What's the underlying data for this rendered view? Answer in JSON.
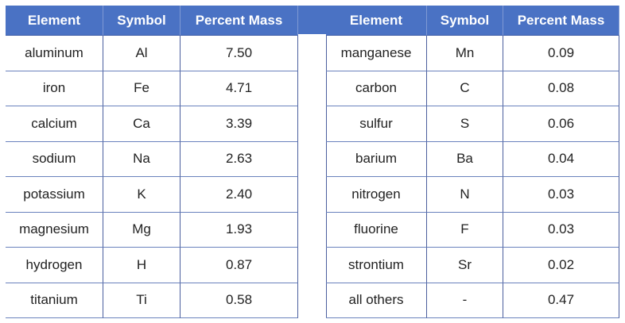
{
  "left": {
    "headers": [
      "Element",
      "Symbol",
      "Percent Mass"
    ],
    "rows": [
      [
        "aluminum",
        "Al",
        "7.50"
      ],
      [
        "iron",
        "Fe",
        "4.71"
      ],
      [
        "calcium",
        "Ca",
        "3.39"
      ],
      [
        "sodium",
        "Na",
        "2.63"
      ],
      [
        "potassium",
        "K",
        "2.40"
      ],
      [
        "magnesium",
        "Mg",
        "1.93"
      ],
      [
        "hydrogen",
        "H",
        "0.87"
      ],
      [
        "titanium",
        "Ti",
        "0.58"
      ]
    ]
  },
  "right": {
    "headers": [
      "Element",
      "Symbol",
      "Percent Mass"
    ],
    "rows": [
      [
        "manganese",
        "Mn",
        "0.09"
      ],
      [
        "carbon",
        "C",
        "0.08"
      ],
      [
        "sulfur",
        "S",
        "0.06"
      ],
      [
        "barium",
        "Ba",
        "0.04"
      ],
      [
        "nitrogen",
        "N",
        "0.03"
      ],
      [
        "fluorine",
        "F",
        "0.03"
      ],
      [
        "strontium",
        "Sr",
        "0.02"
      ],
      [
        "all others",
        "-",
        "0.47"
      ]
    ]
  }
}
